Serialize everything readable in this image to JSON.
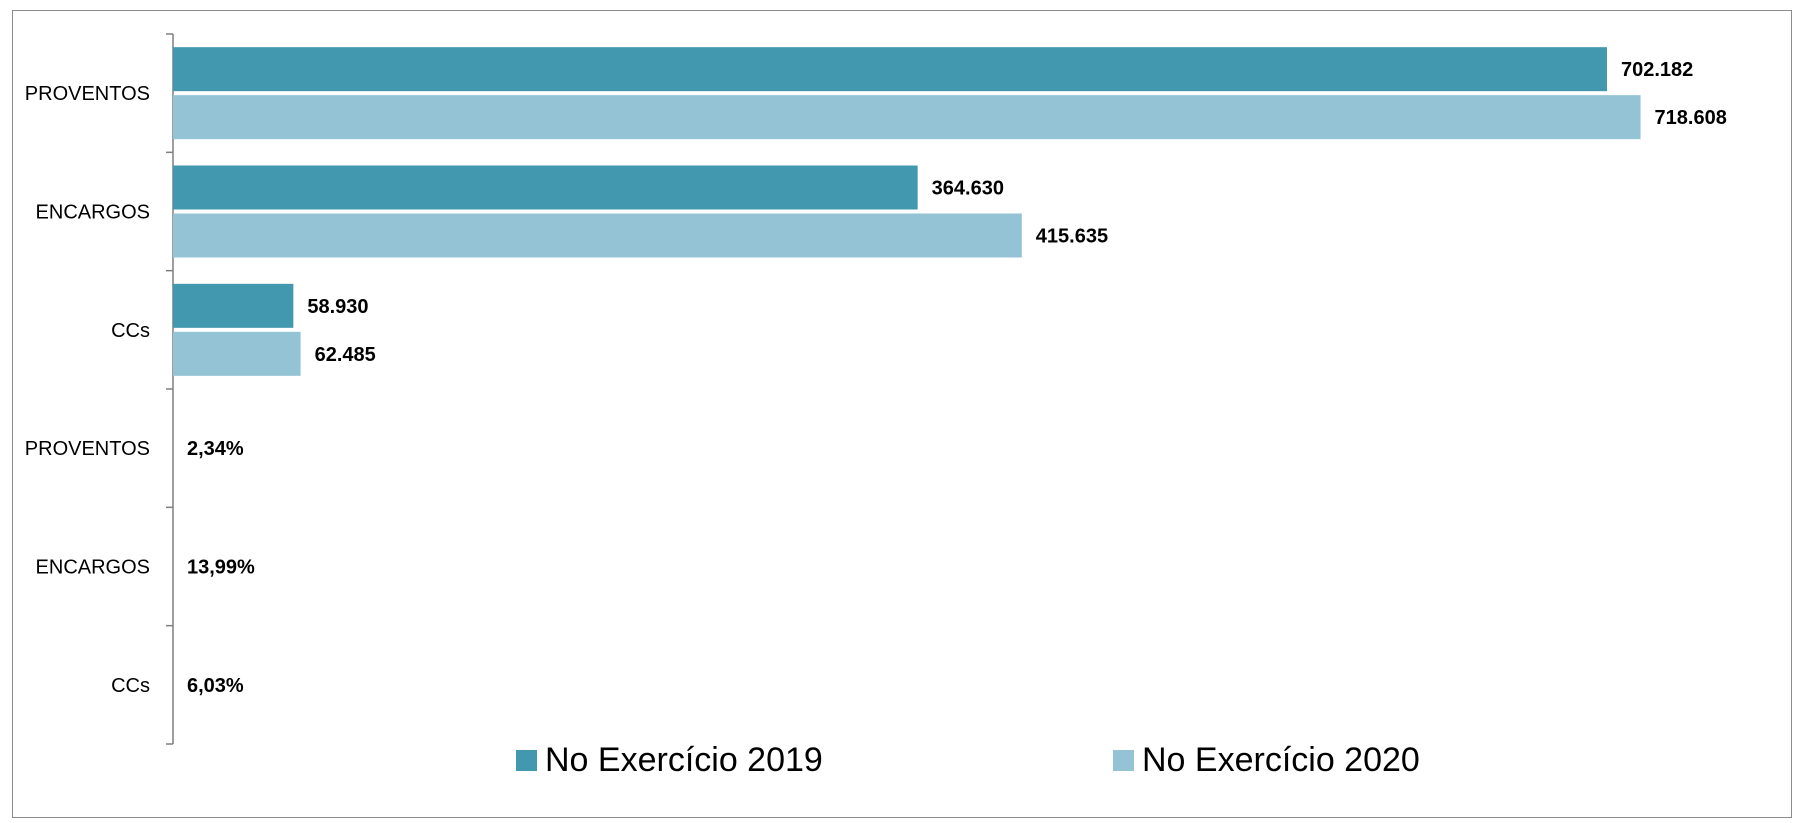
{
  "chart_data": {
    "type": "bar",
    "orientation": "horizontal",
    "grid": false,
    "legend_position": "bottom",
    "title": "",
    "xlabel": "",
    "ylabel": "",
    "xlim": [
      0,
      800000
    ],
    "categories": [
      "PROVENTOS",
      "ENCARGOS",
      "CCs",
      "PROVENTOS",
      "ENCARGOS",
      "CCs"
    ],
    "series": [
      {
        "name": "No Exercício 2019",
        "color": "#4298AE",
        "values": [
          702182,
          364630,
          58930,
          null,
          null,
          null
        ],
        "labels": [
          "702.182",
          "364.630",
          "58.930",
          "",
          "",
          ""
        ]
      },
      {
        "name": "No Exercício 2020",
        "color": "#94C3D6",
        "values": [
          718608,
          415635,
          62485,
          0.0234,
          0.1399,
          0.0603
        ],
        "labels": [
          "718.608",
          "415.635",
          "62.485",
          "2,34%",
          "13,99%",
          "6,03%"
        ]
      }
    ]
  }
}
